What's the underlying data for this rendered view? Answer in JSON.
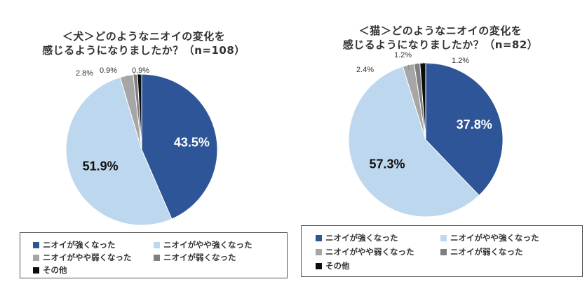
{
  "chart_data": [
    {
      "type": "pie",
      "title_lines": [
        "＜犬＞どのようなニオイの変化を",
        "感じるようになりましたか？（n=108）"
      ],
      "series": [
        {
          "name": "ニオイが強くなった",
          "value": 43.5,
          "label": "43.5%",
          "color": "#2e5597"
        },
        {
          "name": "ニオイがやや強くなった",
          "value": 51.9,
          "label": "51.9%",
          "color": "#bdd7ee"
        },
        {
          "name": "ニオイがやや弱くなった",
          "value": 2.8,
          "label": "2.8%",
          "color": "#a6a6a6"
        },
        {
          "name": "ニオイが弱くなった",
          "value": 0.9,
          "label": "0.9%",
          "color": "#7f7f7f"
        },
        {
          "name": "その他",
          "value": 0.9,
          "label": "0.9%",
          "color": "#0d0d0d"
        }
      ],
      "legend_position": "bottom"
    },
    {
      "type": "pie",
      "title_lines": [
        "＜猫＞どのようなニオイの変化を",
        "感じるようになりましたか？（n=82）"
      ],
      "series": [
        {
          "name": "ニオイが強くなった",
          "value": 37.8,
          "label": "37.8%",
          "color": "#2e5597"
        },
        {
          "name": "ニオイがやや強くなった",
          "value": 57.3,
          "label": "57.3%",
          "color": "#bdd7ee"
        },
        {
          "name": "ニオイがやや弱くなった",
          "value": 2.4,
          "label": "2.4%",
          "color": "#a6a6a6"
        },
        {
          "name": "ニオイが弱くなった",
          "value": 1.2,
          "label": "1.2%",
          "color": "#7f7f7f"
        },
        {
          "name": "その他",
          "value": 1.2,
          "label": "1.2%",
          "color": "#0d0d0d"
        }
      ],
      "legend_position": "bottom"
    }
  ]
}
